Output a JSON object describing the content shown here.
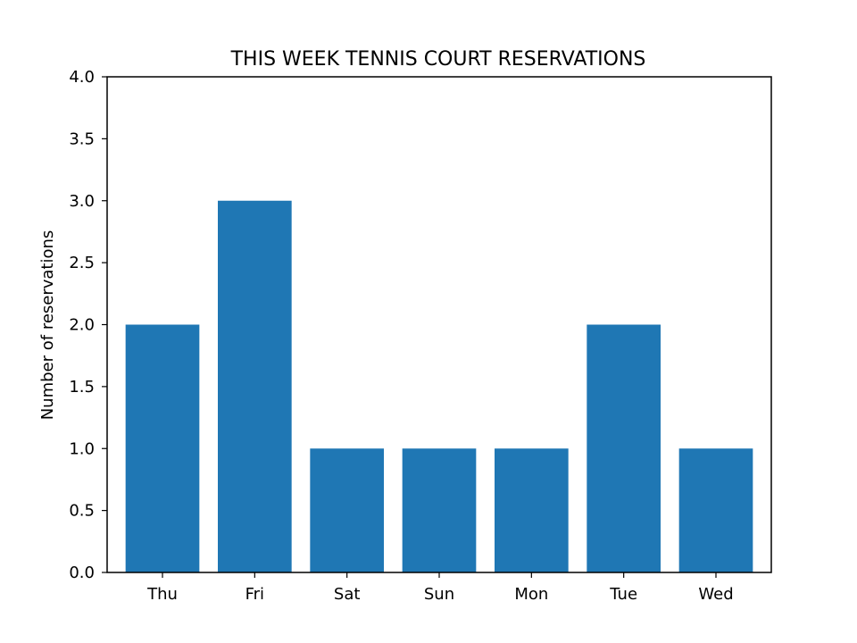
{
  "chart_data": {
    "type": "bar",
    "title": "THIS WEEK TENNIS COURT RESERVATIONS",
    "xlabel": "",
    "ylabel": "Number of reservations",
    "categories": [
      "Thu",
      "Fri",
      "Sat",
      "Sun",
      "Mon",
      "Tue",
      "Wed"
    ],
    "values": [
      2,
      3,
      1,
      1,
      1,
      2,
      1
    ],
    "ylim": [
      0,
      4
    ],
    "yticks": [
      "0.0",
      "0.5",
      "1.0",
      "1.5",
      "2.0",
      "2.5",
      "3.0",
      "3.5",
      "4.0"
    ],
    "grid": false,
    "bar_color": "#1f77b4"
  }
}
